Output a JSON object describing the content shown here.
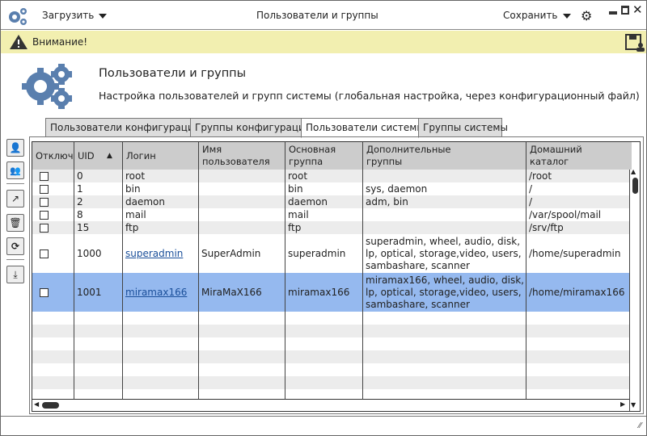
{
  "titlebar": {
    "load_label": "Загрузить",
    "title": "Пользователи и группы",
    "save_label": "Сохранить"
  },
  "warning": {
    "text": "Внимание!"
  },
  "header": {
    "title": "Пользователи и группы",
    "subtitle": "Настройка пользователей и групп системы (глобальная настройка, через конфигурационный файл)"
  },
  "tabs": [
    {
      "label": "Пользователи конфигурации"
    },
    {
      "label": "Группы конфигурации"
    },
    {
      "label": "Пользователи системы",
      "active": true
    },
    {
      "label": "Группы системы"
    }
  ],
  "table": {
    "columns": [
      "Отключ",
      "UID",
      "Логин",
      "Имя\nпользователя",
      "Основная\nгруппа",
      "Дополнительные\nгруппы",
      "Домашний\nкаталог"
    ],
    "sort": {
      "column": "UID",
      "direction": "asc"
    },
    "rows": [
      {
        "disabled": false,
        "uid": "0",
        "login": "root",
        "name": "",
        "group": "root",
        "extra": "",
        "home": "/root"
      },
      {
        "disabled": false,
        "uid": "1",
        "login": "bin",
        "name": "",
        "group": "bin",
        "extra": "sys, daemon",
        "home": "/"
      },
      {
        "disabled": false,
        "uid": "2",
        "login": "daemon",
        "name": "",
        "group": "daemon",
        "extra": "adm, bin",
        "home": "/"
      },
      {
        "disabled": false,
        "uid": "8",
        "login": "mail",
        "name": "",
        "group": "mail",
        "extra": "",
        "home": "/var/spool/mail"
      },
      {
        "disabled": false,
        "uid": "15",
        "login": "ftp",
        "name": "",
        "group": "ftp",
        "extra": "",
        "home": "/srv/ftp"
      },
      {
        "disabled": false,
        "uid": "1000",
        "login": "superadmin",
        "name": "SuperAdmin",
        "group": "superadmin",
        "extra": "superadmin, wheel, audio, disk, lp, optical, storage,video, users, sambashare, scanner",
        "home": "/home/superadmin"
      },
      {
        "disabled": false,
        "uid": "1001",
        "login": "miramax166",
        "name": "MiraMaX166",
        "group": "miramax166",
        "extra": "miramax166, wheel, audio, disk, lp, optical, storage,video, users, sambashare, scanner",
        "home": "/home/miramax166",
        "selected": true
      }
    ]
  },
  "colors": {
    "accent": "#5a7fae",
    "warning_bg": "#f2efb0",
    "selected_row": "#95b9ef",
    "link": "#1a4f9a"
  }
}
